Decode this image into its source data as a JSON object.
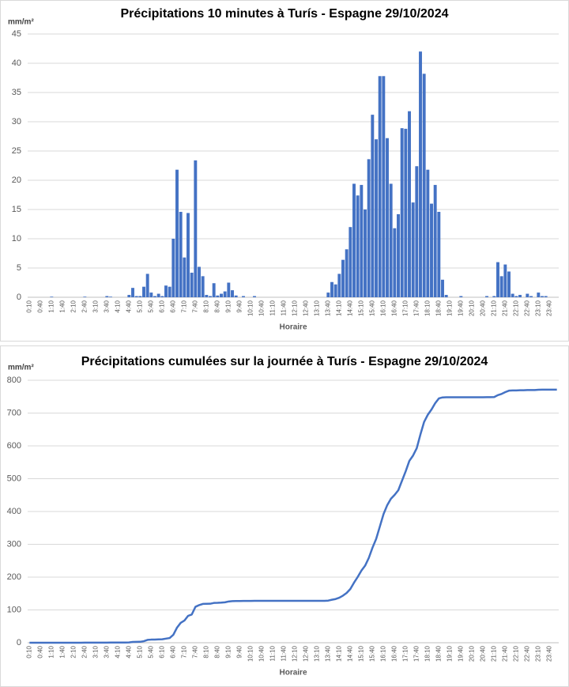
{
  "chart_data": [
    {
      "type": "bar",
      "title": "Précipitations 10 minutes à Turís - Espagne 29/10/2024",
      "y_label": "mm/m²",
      "x_label": "Horaire",
      "categories": [
        "0:10",
        null,
        null,
        "0:40",
        null,
        null,
        "1:10",
        null,
        null,
        "1:40",
        null,
        null,
        "2:10",
        null,
        null,
        "2:40",
        null,
        null,
        "3:10",
        null,
        null,
        "3:40",
        null,
        null,
        "4:10",
        null,
        null,
        "4:40",
        null,
        null,
        "5:10",
        null,
        null,
        "5:40",
        null,
        null,
        "6:10",
        null,
        null,
        "6:40",
        null,
        null,
        "7:10",
        null,
        null,
        "7:40",
        null,
        null,
        "8:10",
        null,
        null,
        "8:40",
        null,
        null,
        "9:10",
        null,
        null,
        "9:40",
        null,
        null,
        "10:10",
        null,
        null,
        "10:40",
        null,
        null,
        "11:10",
        null,
        null,
        "11:40",
        null,
        null,
        "12:10",
        null,
        null,
        "12:40",
        null,
        null,
        "13:10",
        null,
        null,
        "13:40",
        null,
        null,
        "14:10",
        null,
        null,
        "14:40",
        null,
        null,
        "15:10",
        null,
        null,
        "15:40",
        null,
        null,
        "16:10",
        null,
        null,
        "16:40",
        null,
        null,
        "17:10",
        null,
        null,
        "17:40",
        null,
        null,
        "18:10",
        null,
        null,
        "18:40",
        null,
        null,
        "19:10",
        null,
        null,
        "19:40",
        null,
        null,
        "20:10",
        null,
        null,
        "20:40",
        null,
        null,
        "21:10",
        null,
        null,
        "21:40",
        null,
        null,
        "22:10",
        null,
        null,
        "22:40",
        null,
        null,
        "23:10",
        null,
        null,
        "23:40",
        null,
        null
      ],
      "values": [
        0,
        0,
        0,
        0,
        0,
        0,
        0.1,
        0,
        0,
        0,
        0,
        0,
        0,
        0,
        0,
        0.1,
        0,
        0,
        0,
        0,
        0,
        0.2,
        0.1,
        0,
        0,
        0,
        0,
        0.4,
        1.6,
        0.2,
        0.2,
        1.8,
        4.0,
        0.8,
        0.2,
        0.6,
        0.2,
        2.0,
        1.8,
        10.0,
        21.8,
        14.6,
        6.8,
        14.4,
        4.2,
        23.4,
        5.2,
        3.6,
        0.4,
        0.2,
        2.4,
        0.3,
        0.6,
        1.0,
        2.5,
        1.2,
        0.3,
        0,
        0.2,
        0,
        0,
        0.2,
        0,
        0,
        0,
        0,
        0,
        0,
        0,
        0,
        0,
        0,
        0,
        0,
        0,
        0,
        0,
        0,
        0,
        0,
        0,
        0.8,
        2.6,
        2.2,
        4.0,
        6.4,
        8.2,
        12,
        19.4,
        17.4,
        19.2,
        15,
        23.6,
        31.2,
        27,
        37.8,
        37.8,
        27.2,
        19.4,
        11.8,
        14.2,
        28.9,
        28.8,
        31.8,
        16.2,
        22.4,
        42,
        38.2,
        21.8,
        16,
        19.2,
        14.6,
        3,
        0.4,
        0,
        0,
        0,
        0.2,
        0,
        0,
        0,
        0,
        0,
        0,
        0.2,
        0,
        0.2,
        6.0,
        3.6,
        5.6,
        4.4,
        0.6,
        0.2,
        0.4,
        0,
        0.6,
        0.2,
        0,
        0.8,
        0.2,
        0.2,
        0,
        0,
        0
      ],
      "color": "#4472c4",
      "ylim": [
        0,
        45
      ],
      "yticks": [
        0,
        5,
        10,
        15,
        20,
        25,
        30,
        35,
        40,
        45
      ],
      "grid": true
    },
    {
      "type": "line",
      "title": "Précipitations cumulées sur la journée à Turís - Espagne 29/10/2024",
      "y_label": "mm/m²",
      "x_label": "Horaire",
      "categories": [
        "0:10",
        null,
        null,
        "0:40",
        null,
        null,
        "1:10",
        null,
        null,
        "1:40",
        null,
        null,
        "2:10",
        null,
        null,
        "2:40",
        null,
        null,
        "3:10",
        null,
        null,
        "3:40",
        null,
        null,
        "4:10",
        null,
        null,
        "4:40",
        null,
        null,
        "5:10",
        null,
        null,
        "5:40",
        null,
        null,
        "6:10",
        null,
        null,
        "6:40",
        null,
        null,
        "7:10",
        null,
        null,
        "7:40",
        null,
        null,
        "8:10",
        null,
        null,
        "8:40",
        null,
        null,
        "9:10",
        null,
        null,
        "9:40",
        null,
        null,
        "10:10",
        null,
        null,
        "10:40",
        null,
        null,
        "11:10",
        null,
        null,
        "11:40",
        null,
        null,
        "12:10",
        null,
        null,
        "12:40",
        null,
        null,
        "13:10",
        null,
        null,
        "13:40",
        null,
        null,
        "14:10",
        null,
        null,
        "14:40",
        null,
        null,
        "15:10",
        null,
        null,
        "15:40",
        null,
        null,
        "16:10",
        null,
        null,
        "16:40",
        null,
        null,
        "17:10",
        null,
        null,
        "17:40",
        null,
        null,
        "18:10",
        null,
        null,
        "18:40",
        null,
        null,
        "19:10",
        null,
        null,
        "19:40",
        null,
        null,
        "20:10",
        null,
        null,
        "20:40",
        null,
        null,
        "21:10",
        null,
        null,
        "21:40",
        null,
        null,
        "22:10",
        null,
        null,
        "22:40",
        null,
        null,
        "23:10",
        null,
        null,
        "23:40",
        null,
        null
      ],
      "values": [
        0,
        0,
        0,
        0,
        0,
        0,
        0.1,
        0.1,
        0.1,
        0.1,
        0.1,
        0.1,
        0.1,
        0.1,
        0.1,
        0.2,
        0.2,
        0.2,
        0.2,
        0.2,
        0.2,
        0.4,
        0.5,
        0.5,
        0.5,
        0.5,
        0.5,
        0.9,
        2.5,
        2.7,
        2.9,
        4.7,
        8.7,
        9.5,
        9.7,
        10.3,
        10.5,
        12.5,
        14.3,
        24.3,
        46.1,
        60.7,
        67.5,
        81.9,
        86.1,
        109.5,
        114.7,
        118.3,
        118.7,
        118.9,
        121.3,
        121.6,
        122.2,
        123.2,
        125.7,
        126.9,
        127.2,
        127.2,
        127.4,
        127.4,
        127.4,
        127.6,
        127.6,
        127.6,
        127.6,
        127.6,
        127.6,
        127.6,
        127.6,
        127.6,
        127.6,
        127.6,
        127.6,
        127.6,
        127.6,
        127.6,
        127.6,
        127.6,
        127.6,
        127.6,
        127.6,
        128.4,
        131.0,
        133.2,
        137.2,
        143.6,
        151.8,
        163.8,
        183.2,
        200.6,
        219.8,
        234.8,
        258.4,
        289.6,
        316.6,
        354.4,
        392.2,
        419.4,
        438.8,
        450.6,
        464.8,
        493.7,
        522.5,
        554.3,
        570.5,
        592.9,
        634.9,
        673.1,
        694.9,
        710.9,
        730.1,
        744.7,
        747.7,
        748.1,
        748.1,
        748.1,
        748.1,
        748.3,
        748.3,
        748.3,
        748.3,
        748.3,
        748.3,
        748.3,
        748.5,
        748.5,
        748.7,
        754.7,
        758.3,
        763.9,
        768.3,
        768.9,
        769.1,
        769.5,
        769.5,
        770.1,
        770.3,
        770.3,
        771.1,
        771.3,
        771.5,
        771.5,
        771.5,
        771.5
      ],
      "color": "#4472c4",
      "ylim": [
        0,
        800
      ],
      "yticks": [
        0,
        100,
        200,
        300,
        400,
        500,
        600,
        700,
        800
      ],
      "grid": true
    }
  ]
}
